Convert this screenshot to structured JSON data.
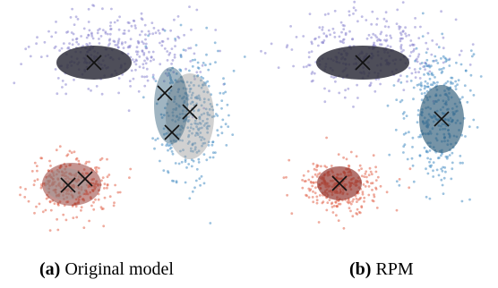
{
  "chart_data": [
    {
      "type": "scatter",
      "caption_label": "(a)",
      "caption_text": "Original model",
      "xlim": [
        0,
        278
      ],
      "ylim": [
        0,
        280
      ],
      "colors": {
        "purple": "#8d86cf",
        "blue": "#4a90c4",
        "red": "#e2664f",
        "ellipse_dark": "#2f2f3c",
        "ellipse_blue": "#2c5a78",
        "ellipse_gray": "#9a9a9a",
        "ellipse_red": "#8b2a22",
        "marker": "#111111"
      },
      "clusters": [
        {
          "name": "purple",
          "center": [
            128,
            55
          ],
          "spread": [
            42,
            22
          ],
          "count": 330,
          "seed": 11
        },
        {
          "name": "blue",
          "center": [
            212,
            125
          ],
          "spread": [
            18,
            38
          ],
          "count": 330,
          "seed": 23
        },
        {
          "name": "red",
          "center": [
            82,
            208
          ],
          "spread": [
            22,
            16
          ],
          "count": 300,
          "seed": 37
        }
      ],
      "components": [
        {
          "center": [
            105,
            70
          ],
          "radii": [
            42,
            19
          ],
          "angle": 0,
          "fill": "ellipse_dark",
          "opacity": 0.85
        },
        {
          "center": [
            212,
            130
          ],
          "radii": [
            27,
            48
          ],
          "angle": 0,
          "fill": "ellipse_gray",
          "opacity": 0.45
        },
        {
          "center": [
            191,
            118
          ],
          "radii": [
            19,
            43
          ],
          "angle": 0,
          "fill": "ellipse_blue",
          "opacity": 0.45
        },
        {
          "center": [
            80,
            206
          ],
          "radii": [
            33,
            24
          ],
          "angle": 0,
          "fill": "ellipse_red",
          "opacity": 0.5
        },
        {
          "center": [
            74,
            206
          ],
          "radii": [
            24,
            18
          ],
          "angle": 0,
          "fill": "ellipse_gray",
          "opacity": 0.45
        }
      ],
      "means": [
        [
          105,
          70
        ],
        [
          184,
          104
        ],
        [
          212,
          125
        ],
        [
          192,
          148
        ],
        [
          76,
          207
        ],
        [
          95,
          200
        ]
      ]
    },
    {
      "type": "scatter",
      "caption_label": "(b)",
      "caption_text": "RPM",
      "xlim": [
        0,
        278
      ],
      "ylim": [
        0,
        280
      ],
      "colors": {
        "purple": "#8d86cf",
        "blue": "#4a90c4",
        "red": "#e2664f",
        "ellipse_dark": "#2f2f3c",
        "ellipse_blue": "#2c5a78",
        "ellipse_gray": "#9a9a9a",
        "ellipse_red": "#8b2a22",
        "marker": "#111111"
      },
      "clusters": [
        {
          "name": "purple",
          "center": [
            128,
            55
          ],
          "spread": [
            42,
            22
          ],
          "count": 330,
          "seed": 51
        },
        {
          "name": "blue",
          "center": [
            212,
            125
          ],
          "spread": [
            18,
            38
          ],
          "count": 330,
          "seed": 63
        },
        {
          "name": "red",
          "center": [
            102,
            208
          ],
          "spread": [
            22,
            16
          ],
          "count": 300,
          "seed": 77
        }
      ],
      "components": [
        {
          "center": [
            127,
            70
          ],
          "radii": [
            52,
            19
          ],
          "angle": 0,
          "fill": "ellipse_dark",
          "opacity": 0.85
        },
        {
          "center": [
            215,
            133
          ],
          "radii": [
            25,
            38
          ],
          "angle": 0,
          "fill": "ellipse_blue",
          "opacity": 0.65
        },
        {
          "center": [
            101,
            205
          ],
          "radii": [
            25,
            19
          ],
          "angle": 0,
          "fill": "ellipse_red",
          "opacity": 0.65
        }
      ],
      "means": [
        [
          127,
          70
        ],
        [
          215,
          133
        ],
        [
          101,
          205
        ]
      ]
    }
  ]
}
